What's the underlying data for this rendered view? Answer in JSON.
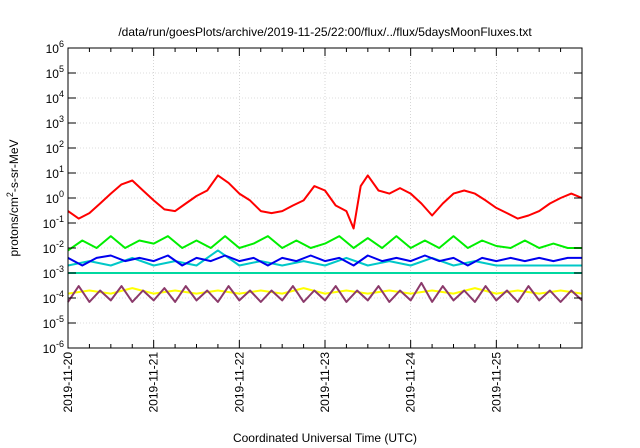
{
  "chart_data": {
    "type": "line",
    "title": "/data/run/goesPlots/archive/2019-11-25/22:00/flux/../flux/5daysMoonFluxes.txt",
    "xlabel": "Coordinated Universal Time (UTC)",
    "ylabel_prefix": "protons/cm",
    "ylabel_sup": "2",
    "ylabel_suffix": "-s-sr-MeV",
    "y_scale": "log",
    "ylim": [
      1e-06,
      1000000.0
    ],
    "y_ticks": [
      {
        "exp": -6,
        "base": "10",
        "power": "-6"
      },
      {
        "exp": -5,
        "base": "10",
        "power": "-5"
      },
      {
        "exp": -4,
        "base": "10",
        "power": "-4"
      },
      {
        "exp": -3,
        "base": "10",
        "power": "-3"
      },
      {
        "exp": -2,
        "base": "10",
        "power": "-2"
      },
      {
        "exp": -1,
        "base": "10",
        "power": "-1"
      },
      {
        "exp": 0,
        "base": "10",
        "power": "0"
      },
      {
        "exp": 1,
        "base": "10",
        "power": "1"
      },
      {
        "exp": 2,
        "base": "10",
        "power": "2"
      },
      {
        "exp": 3,
        "base": "10",
        "power": "3"
      },
      {
        "exp": 4,
        "base": "10",
        "power": "4"
      },
      {
        "exp": 5,
        "base": "10",
        "power": "5"
      },
      {
        "exp": 6,
        "base": "10",
        "power": "6"
      }
    ],
    "xlim": [
      "2019-11-20T00:00",
      "2019-11-26T00:00"
    ],
    "x_tick_labels": [
      "2019-11-20",
      "2019-11-21",
      "2019-11-22",
      "2019-11-23",
      "2019-11-24",
      "2019-11-25"
    ],
    "grid": true,
    "legend": "none",
    "series": [
      {
        "color": "#ff0000",
        "values": [
          [
            "2019-11-20T00:00",
            0.3
          ],
          [
            "2019-11-20T03:00",
            0.15
          ],
          [
            "2019-11-20T06:00",
            0.25
          ],
          [
            "2019-11-20T09:00",
            0.6
          ],
          [
            "2019-11-20T12:00",
            1.5
          ],
          [
            "2019-11-20T15:00",
            3.5
          ],
          [
            "2019-11-20T18:00",
            5
          ],
          [
            "2019-11-20T21:00",
            2
          ],
          [
            "2019-11-21T00:00",
            0.8
          ],
          [
            "2019-11-21T03:00",
            0.35
          ],
          [
            "2019-11-21T06:00",
            0.3
          ],
          [
            "2019-11-21T09:00",
            0.6
          ],
          [
            "2019-11-21T12:00",
            1.2
          ],
          [
            "2019-11-21T15:00",
            2
          ],
          [
            "2019-11-21T18:00",
            8
          ],
          [
            "2019-11-21T21:00",
            4
          ],
          [
            "2019-11-22T00:00",
            1.5
          ],
          [
            "2019-11-22T03:00",
            0.8
          ],
          [
            "2019-11-22T06:00",
            0.3
          ],
          [
            "2019-11-22T09:00",
            0.25
          ],
          [
            "2019-11-22T12:00",
            0.3
          ],
          [
            "2019-11-22T15:00",
            0.5
          ],
          [
            "2019-11-22T18:00",
            0.8
          ],
          [
            "2019-11-22T21:00",
            3
          ],
          [
            "2019-11-23T00:00",
            2
          ],
          [
            "2019-11-23T03:00",
            0.5
          ],
          [
            "2019-11-23T06:00",
            0.3
          ],
          [
            "2019-11-23T08:00",
            0.06
          ],
          [
            "2019-11-23T10:00",
            3
          ],
          [
            "2019-11-23T12:00",
            8
          ],
          [
            "2019-11-23T15:00",
            2
          ],
          [
            "2019-11-23T18:00",
            1.5
          ],
          [
            "2019-11-23T21:00",
            2.5
          ],
          [
            "2019-11-24T00:00",
            1.5
          ],
          [
            "2019-11-24T03:00",
            0.6
          ],
          [
            "2019-11-24T06:00",
            0.2
          ],
          [
            "2019-11-24T09:00",
            0.6
          ],
          [
            "2019-11-24T12:00",
            1.5
          ],
          [
            "2019-11-24T15:00",
            2
          ],
          [
            "2019-11-24T18:00",
            1.5
          ],
          [
            "2019-11-24T21:00",
            0.8
          ],
          [
            "2019-11-25T00:00",
            0.4
          ],
          [
            "2019-11-25T03:00",
            0.25
          ],
          [
            "2019-11-25T06:00",
            0.15
          ],
          [
            "2019-11-25T09:00",
            0.2
          ],
          [
            "2019-11-25T12:00",
            0.3
          ],
          [
            "2019-11-25T15:00",
            0.6
          ],
          [
            "2019-11-25T18:00",
            1
          ],
          [
            "2019-11-25T21:00",
            1.5
          ],
          [
            "2019-11-26T00:00",
            1
          ]
        ]
      },
      {
        "color": "#00ee00",
        "values": [
          [
            "2019-11-20T00:00",
            0.008
          ],
          [
            "2019-11-20T04:00",
            0.02
          ],
          [
            "2019-11-20T08:00",
            0.01
          ],
          [
            "2019-11-20T12:00",
            0.03
          ],
          [
            "2019-11-20T16:00",
            0.01
          ],
          [
            "2019-11-20T20:00",
            0.02
          ],
          [
            "2019-11-21T00:00",
            0.015
          ],
          [
            "2019-11-21T04:00",
            0.03
          ],
          [
            "2019-11-21T08:00",
            0.01
          ],
          [
            "2019-11-21T12:00",
            0.02
          ],
          [
            "2019-11-21T16:00",
            0.01
          ],
          [
            "2019-11-21T20:00",
            0.03
          ],
          [
            "2019-11-22T00:00",
            0.01
          ],
          [
            "2019-11-22T04:00",
            0.015
          ],
          [
            "2019-11-22T08:00",
            0.03
          ],
          [
            "2019-11-22T12:00",
            0.01
          ],
          [
            "2019-11-22T16:00",
            0.02
          ],
          [
            "2019-11-22T20:00",
            0.01
          ],
          [
            "2019-11-23T00:00",
            0.015
          ],
          [
            "2019-11-23T04:00",
            0.03
          ],
          [
            "2019-11-23T08:00",
            0.01
          ],
          [
            "2019-11-23T12:00",
            0.025
          ],
          [
            "2019-11-23T16:00",
            0.01
          ],
          [
            "2019-11-23T20:00",
            0.03
          ],
          [
            "2019-11-24T00:00",
            0.01
          ],
          [
            "2019-11-24T04:00",
            0.02
          ],
          [
            "2019-11-24T08:00",
            0.01
          ],
          [
            "2019-11-24T12:00",
            0.03
          ],
          [
            "2019-11-24T16:00",
            0.01
          ],
          [
            "2019-11-24T20:00",
            0.02
          ],
          [
            "2019-11-25T00:00",
            0.012
          ],
          [
            "2019-11-25T04:00",
            0.01
          ],
          [
            "2019-11-25T08:00",
            0.02
          ],
          [
            "2019-11-25T12:00",
            0.01
          ],
          [
            "2019-11-25T16:00",
            0.015
          ],
          [
            "2019-11-25T20:00",
            0.01
          ],
          [
            "2019-11-26T00:00",
            0.01
          ]
        ]
      },
      {
        "color": "#00c8c8",
        "values": [
          [
            "2019-11-20T00:00",
            0.002
          ],
          [
            "2019-11-20T06:00",
            0.003
          ],
          [
            "2019-11-20T12:00",
            0.002
          ],
          [
            "2019-11-20T18:00",
            0.004
          ],
          [
            "2019-11-21T00:00",
            0.002
          ],
          [
            "2019-11-21T06:00",
            0.003
          ],
          [
            "2019-11-21T12:00",
            0.002
          ],
          [
            "2019-11-21T18:00",
            0.008
          ],
          [
            "2019-11-22T00:00",
            0.002
          ],
          [
            "2019-11-22T06:00",
            0.003
          ],
          [
            "2019-11-22T12:00",
            0.002
          ],
          [
            "2019-11-22T18:00",
            0.003
          ],
          [
            "2019-11-23T00:00",
            0.002
          ],
          [
            "2019-11-23T06:00",
            0.004
          ],
          [
            "2019-11-23T12:00",
            0.002
          ],
          [
            "2019-11-23T18:00",
            0.003
          ],
          [
            "2019-11-24T00:00",
            0.002
          ],
          [
            "2019-11-24T06:00",
            0.004
          ],
          [
            "2019-11-24T12:00",
            0.002
          ],
          [
            "2019-11-24T18:00",
            0.003
          ],
          [
            "2019-11-25T00:00",
            0.002
          ],
          [
            "2019-11-25T06:00",
            0.002
          ],
          [
            "2019-11-25T12:00",
            0.002
          ],
          [
            "2019-11-25T18:00",
            0.002
          ],
          [
            "2019-11-26T00:00",
            0.002
          ]
        ]
      },
      {
        "color": "#0000ee",
        "values": [
          [
            "2019-11-20T00:00",
            0.004
          ],
          [
            "2019-11-20T04:00",
            0.002
          ],
          [
            "2019-11-20T08:00",
            0.004
          ],
          [
            "2019-11-20T12:00",
            0.005
          ],
          [
            "2019-11-20T16:00",
            0.003
          ],
          [
            "2019-11-20T20:00",
            0.004
          ],
          [
            "2019-11-21T00:00",
            0.003
          ],
          [
            "2019-11-21T04:00",
            0.005
          ],
          [
            "2019-11-21T08:00",
            0.002
          ],
          [
            "2019-11-21T12:00",
            0.004
          ],
          [
            "2019-11-21T16:00",
            0.003
          ],
          [
            "2019-11-21T20:00",
            0.005
          ],
          [
            "2019-11-22T00:00",
            0.003
          ],
          [
            "2019-11-22T04:00",
            0.004
          ],
          [
            "2019-11-22T08:00",
            0.002
          ],
          [
            "2019-11-22T12:00",
            0.004
          ],
          [
            "2019-11-22T16:00",
            0.003
          ],
          [
            "2019-11-22T20:00",
            0.005
          ],
          [
            "2019-11-23T00:00",
            0.003
          ],
          [
            "2019-11-23T04:00",
            0.004
          ],
          [
            "2019-11-23T08:00",
            0.002
          ],
          [
            "2019-11-23T12:00",
            0.005
          ],
          [
            "2019-11-23T16:00",
            0.003
          ],
          [
            "2019-11-23T20:00",
            0.004
          ],
          [
            "2019-11-24T00:00",
            0.003
          ],
          [
            "2019-11-24T04:00",
            0.005
          ],
          [
            "2019-11-24T08:00",
            0.003
          ],
          [
            "2019-11-24T12:00",
            0.004
          ],
          [
            "2019-11-24T16:00",
            0.002
          ],
          [
            "2019-11-24T20:00",
            0.004
          ],
          [
            "2019-11-25T00:00",
            0.003
          ],
          [
            "2019-11-25T04:00",
            0.004
          ],
          [
            "2019-11-25T08:00",
            0.003
          ],
          [
            "2019-11-25T12:00",
            0.004
          ],
          [
            "2019-11-25T16:00",
            0.003
          ],
          [
            "2019-11-25T20:00",
            0.004
          ],
          [
            "2019-11-26T00:00",
            0.004
          ]
        ]
      },
      {
        "color": "#00d8a0",
        "values": [
          [
            "2019-11-20T00:00",
            0.001
          ],
          [
            "2019-11-21T00:00",
            0.001
          ],
          [
            "2019-11-22T00:00",
            0.001
          ],
          [
            "2019-11-23T00:00",
            0.001
          ],
          [
            "2019-11-24T00:00",
            0.001
          ],
          [
            "2019-11-25T00:00",
            0.001
          ],
          [
            "2019-11-26T00:00",
            0.001
          ]
        ]
      },
      {
        "color": "#ffff00",
        "values": [
          [
            "2019-11-20T00:00",
            0.00015
          ],
          [
            "2019-11-20T06:00",
            0.0002
          ],
          [
            "2019-11-20T12:00",
            0.00015
          ],
          [
            "2019-11-20T18:00",
            0.00025
          ],
          [
            "2019-11-21T00:00",
            0.00015
          ],
          [
            "2019-11-21T06:00",
            0.0002
          ],
          [
            "2019-11-21T12:00",
            0.00015
          ],
          [
            "2019-11-21T18:00",
            0.0002
          ],
          [
            "2019-11-22T00:00",
            0.00015
          ],
          [
            "2019-11-22T06:00",
            0.0002
          ],
          [
            "2019-11-22T12:00",
            0.00015
          ],
          [
            "2019-11-22T18:00",
            0.00025
          ],
          [
            "2019-11-23T00:00",
            0.00015
          ],
          [
            "2019-11-23T06:00",
            0.0002
          ],
          [
            "2019-11-23T12:00",
            0.00015
          ],
          [
            "2019-11-23T18:00",
            0.0002
          ],
          [
            "2019-11-24T00:00",
            0.00015
          ],
          [
            "2019-11-24T06:00",
            0.0002
          ],
          [
            "2019-11-24T12:00",
            0.00015
          ],
          [
            "2019-11-24T18:00",
            0.00025
          ],
          [
            "2019-11-25T00:00",
            0.00015
          ],
          [
            "2019-11-25T06:00",
            0.0002
          ],
          [
            "2019-11-25T12:00",
            0.00015
          ],
          [
            "2019-11-25T18:00",
            0.0002
          ],
          [
            "2019-11-26T00:00",
            0.00015
          ]
        ]
      },
      {
        "color": "#8b3a6b",
        "values": [
          [
            "2019-11-20T00:00",
            7e-05
          ],
          [
            "2019-11-20T03:00",
            0.0003
          ],
          [
            "2019-11-20T06:00",
            7e-05
          ],
          [
            "2019-11-20T09:00",
            0.0002
          ],
          [
            "2019-11-20T12:00",
            8e-05
          ],
          [
            "2019-11-20T15:00",
            0.0003
          ],
          [
            "2019-11-20T18:00",
            7e-05
          ],
          [
            "2019-11-20T21:00",
            0.0002
          ],
          [
            "2019-11-21T00:00",
            8e-05
          ],
          [
            "2019-11-21T03:00",
            0.00025
          ],
          [
            "2019-11-21T06:00",
            7e-05
          ],
          [
            "2019-11-21T09:00",
            0.0003
          ],
          [
            "2019-11-21T12:00",
            8e-05
          ],
          [
            "2019-11-21T15:00",
            0.0002
          ],
          [
            "2019-11-21T18:00",
            7e-05
          ],
          [
            "2019-11-21T21:00",
            0.0003
          ],
          [
            "2019-11-22T00:00",
            8e-05
          ],
          [
            "2019-11-22T03:00",
            0.0002
          ],
          [
            "2019-11-22T06:00",
            7e-05
          ],
          [
            "2019-11-22T09:00",
            0.0002
          ],
          [
            "2019-11-22T12:00",
            8e-05
          ],
          [
            "2019-11-22T15:00",
            0.0003
          ],
          [
            "2019-11-22T18:00",
            7e-05
          ],
          [
            "2019-11-22T21:00",
            0.0002
          ],
          [
            "2019-11-23T00:00",
            8e-05
          ],
          [
            "2019-11-23T03:00",
            0.0003
          ],
          [
            "2019-11-23T06:00",
            7e-05
          ],
          [
            "2019-11-23T09:00",
            0.0002
          ],
          [
            "2019-11-23T12:00",
            8e-05
          ],
          [
            "2019-11-23T15:00",
            0.0003
          ],
          [
            "2019-11-23T18:00",
            7e-05
          ],
          [
            "2019-11-23T21:00",
            0.0002
          ],
          [
            "2019-11-24T00:00",
            8e-05
          ],
          [
            "2019-11-24T03:00",
            0.0004
          ],
          [
            "2019-11-24T06:00",
            7e-05
          ],
          [
            "2019-11-24T09:00",
            0.0003
          ],
          [
            "2019-11-24T12:00",
            8e-05
          ],
          [
            "2019-11-24T15:00",
            0.0002
          ],
          [
            "2019-11-24T18:00",
            7e-05
          ],
          [
            "2019-11-24T21:00",
            0.0003
          ],
          [
            "2019-11-25T00:00",
            8e-05
          ],
          [
            "2019-11-25T03:00",
            0.0002
          ],
          [
            "2019-11-25T06:00",
            7e-05
          ],
          [
            "2019-11-25T09:00",
            0.0003
          ],
          [
            "2019-11-25T12:00",
            8e-05
          ],
          [
            "2019-11-25T15:00",
            0.0002
          ],
          [
            "2019-11-25T18:00",
            7e-05
          ],
          [
            "2019-11-25T21:00",
            0.0002
          ],
          [
            "2019-11-26T00:00",
            8e-05
          ]
        ]
      }
    ]
  }
}
